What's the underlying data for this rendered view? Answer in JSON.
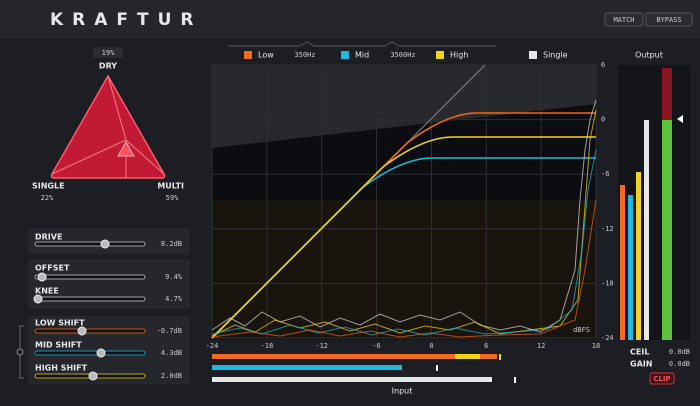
{
  "header": {
    "title": "KRAFTUR",
    "buttons": [
      "MATCH",
      "BYPASS"
    ]
  },
  "blend": {
    "dry_label": "DRY",
    "dry_value": "19%",
    "single_label": "SINGLE",
    "single_value": "22%",
    "multi_label": "MULTI",
    "multi_value": "59%"
  },
  "controls": [
    {
      "label": "DRIVE",
      "value": "8.2dB"
    },
    {
      "label": "OFFSET",
      "value": "9.4%"
    },
    {
      "label": "KNEE",
      "value": "4.7%"
    },
    {
      "label": "LOW SHIFT",
      "value": "-0.7dB"
    },
    {
      "label": "MID SHIFT",
      "value": "4.3dB"
    },
    {
      "label": "HIGH SHIFT",
      "value": "2.0dB"
    }
  ],
  "legend": {
    "bands": [
      {
        "name": "Low",
        "color": "#f26a1b"
      },
      {
        "name": "Mid",
        "color": "#1fb8e0"
      },
      {
        "name": "High",
        "color": "#f2d21b"
      },
      {
        "name": "Single",
        "color": "#e6e6e6"
      }
    ],
    "crossovers": [
      "350Hz",
      "3500Hz"
    ]
  },
  "graph": {
    "xlim": [
      -24,
      18
    ],
    "xticks": [
      -24,
      -18,
      -12,
      -6,
      0,
      6,
      12,
      18
    ],
    "ylim": [
      -24,
      6
    ],
    "yticks": [
      6,
      0,
      -6,
      -12,
      -18,
      -24
    ],
    "unit": "dBFS",
    "x_label": "Input"
  },
  "output": {
    "title": "Output",
    "ceil_label": "CEIL",
    "ceil_value": "0.0dB",
    "gain_label": "GAIN",
    "gain_value": "0.0dB",
    "clip": "CLIP"
  }
}
